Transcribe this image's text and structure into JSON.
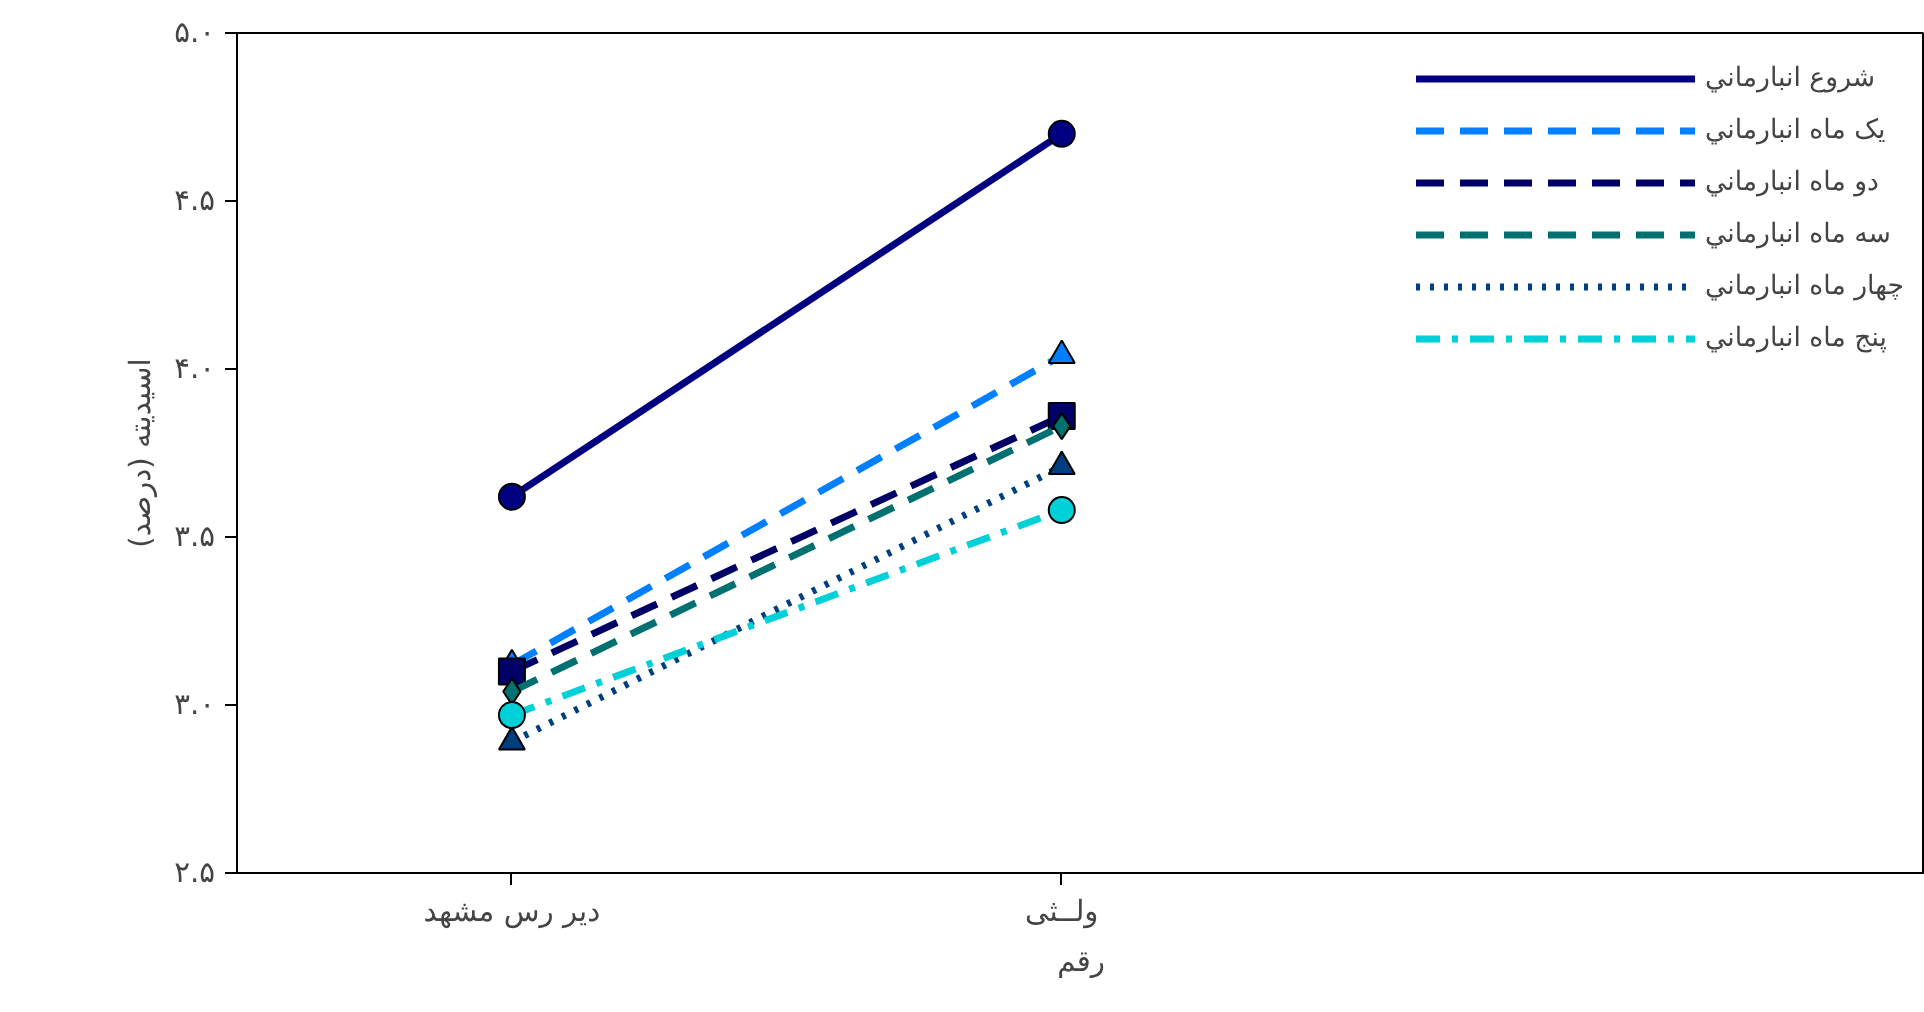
{
  "chart_data": {
    "type": "line",
    "xlabel": "رقم",
    "ylabel": "اسیدیته (درصد)",
    "categories": [
      "دیر رس مشهد",
      "ولــثی"
    ],
    "ylim": [
      2.5,
      5.0
    ],
    "yticks": [
      {
        "value": 2.5,
        "label": "۲.۵"
      },
      {
        "value": 3.0,
        "label": "۳.۰"
      },
      {
        "value": 3.5,
        "label": "۳.۵"
      },
      {
        "value": 4.0,
        "label": "۴.۰"
      },
      {
        "value": 4.5,
        "label": "۴.۵"
      },
      {
        "value": 5.0,
        "label": "۵.۰"
      }
    ],
    "grid": false,
    "legend": "top right",
    "series": [
      {
        "name": "شروع انبارماني",
        "color": "#000080",
        "values": [
          3.62,
          4.7
        ],
        "marker": "circle",
        "line_style": "solid"
      },
      {
        "name": "یک ماه انبارماني",
        "color": "#0080ff",
        "values": [
          3.12,
          4.04
        ],
        "marker": "triangle",
        "line_style": "dashed"
      },
      {
        "name": "دو ماه انبارماني",
        "color": "#000066",
        "values": [
          3.1,
          3.86
        ],
        "marker": "square",
        "line_style": "dashed"
      },
      {
        "name": "سه ماه انبارماني",
        "color": "#007070",
        "values": [
          3.04,
          3.83
        ],
        "marker": "diamond",
        "line_style": "dashed"
      },
      {
        "name": "چهار ماه انبارماني",
        "color": "#003f7f",
        "values": [
          2.89,
          3.71
        ],
        "marker": "triangle",
        "line_style": "dotted"
      },
      {
        "name": "پنج ماه انبارماني",
        "color": "#00d0d8",
        "values": [
          2.97,
          3.58
        ],
        "marker": "circle",
        "line_style": "dashdot"
      }
    ]
  }
}
